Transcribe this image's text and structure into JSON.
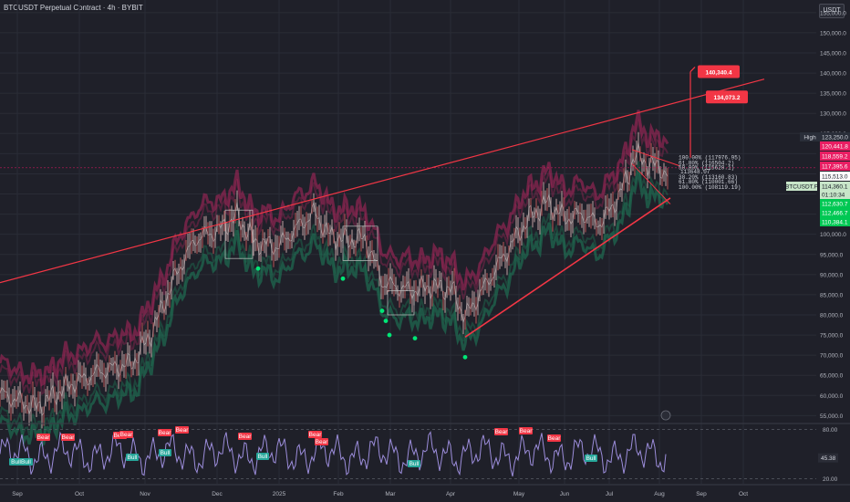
{
  "title": "BTCUSDT Perpetual Contract · 4h · BYBIT",
  "currency_button": "USDT",
  "chart_data": [
    {
      "type": "line",
      "title": "BTCUSDT Perpetual Contract · 4h · BYBIT",
      "x_ticks": [
        "Sep",
        "Oct",
        "Nov",
        "Dec",
        "2025",
        "Feb",
        "Mar",
        "Apr",
        "May",
        "Jun",
        "Jul",
        "Aug",
        "Sep",
        "Oct"
      ],
      "y_ticks": [
        55000,
        60000,
        65000,
        70000,
        75000,
        80000,
        85000,
        90000,
        95000,
        100000,
        105000,
        110000,
        115000,
        120000,
        125000,
        130000,
        135000,
        140000,
        145000,
        150000,
        155000
      ],
      "y_tick_labels": [
        "55,000.0",
        "60,000.0",
        "65,000.0",
        "70,000.0",
        "75,000.0",
        "80,000.0",
        "85,000.0",
        "90,000.0",
        "95,000.0",
        "100,000.0",
        "105,000.0",
        "110,000.0",
        "115,000.0",
        "120,000.0",
        "125,000.0",
        "130,000.0",
        "135,000.0",
        "140,000.0",
        "145,000.0",
        "150,000.0",
        "155,000.0"
      ],
      "ylim": [
        53500,
        157000
      ],
      "series": [
        {
          "name": "BTCUSDT.P",
          "x": [
            "Sep",
            "Oct",
            "Nov",
            "Nov",
            "Dec",
            "Dec",
            "2025",
            "Feb",
            "Feb",
            "Mar",
            "Mar",
            "Apr",
            "Apr",
            "May",
            "Jun",
            "Jun",
            "Jul",
            "Jul",
            "Aug"
          ],
          "values": [
            58000,
            62000,
            68000,
            90000,
            96000,
            106000,
            94000,
            104000,
            95000,
            86000,
            80000,
            84000,
            75000,
            95000,
            105000,
            101000,
            109000,
            120000,
            114360
          ]
        }
      ],
      "support_points": [
        91500,
        89000,
        81000,
        78500,
        75000,
        74200,
        69500
      ],
      "price_labels": [
        "140,340.4",
        "134,073.2"
      ],
      "fib_labels": [
        "100.00%  (117976.95)",
        "61.80%  (116504.2)",
        "50.00%  (115620.1)",
        "113648.07",
        "38.20%  (113160.83)",
        "61.80%  (110001.66)",
        "100.00%  (108119.19)"
      ],
      "axis_badges": [
        {
          "label": "High",
          "value": "123,250.0",
          "color": "#2a2e39"
        },
        {
          "value": "120,441.8",
          "color": "#e91e63"
        },
        {
          "value": "118,559.2",
          "color": "#e91e63"
        },
        {
          "value": "117,395.6",
          "color": "#e91e63"
        },
        {
          "value": "115,513.0",
          "color": "#ffffff"
        },
        {
          "label": "BTCUSDT.P",
          "value": "114,360.1",
          "color": "#c8e6c9"
        },
        {
          "value": "01:10:34",
          "color": "#c8e6c9"
        },
        {
          "value": "112,630.7",
          "color": "#00c853"
        },
        {
          "value": "112,466.7",
          "color": "#00c853"
        },
        {
          "value": "110,384.1",
          "color": "#00c853"
        }
      ]
    },
    {
      "type": "line",
      "title": "",
      "y_ticks": [
        80.0,
        20.0
      ],
      "y_tick_labels": [
        "80.00",
        "20.00"
      ],
      "ylim": [
        15,
        85
      ],
      "current_value": "45.38",
      "signals": {
        "bear": "Bear",
        "bull": "Bull",
        "bull_bull": "BullBull"
      }
    }
  ],
  "colors": {
    "background": "#1f2029",
    "candle_up": "#e8c0c0",
    "band_upper": "#b0275e",
    "band_lower": "#1e7a58",
    "trend": "#f23645",
    "support": "#00e676",
    "rsi": "#9c8ddb"
  }
}
